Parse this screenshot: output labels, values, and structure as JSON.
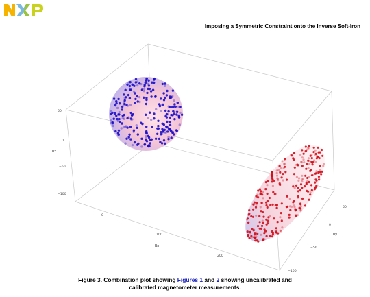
{
  "header": {
    "logo_text": "NXP",
    "title": "Imposing a Symmetric Constraint onto the Inverse Soft-Iron"
  },
  "caption": {
    "part1": "Figure 3. Combination plot showing ",
    "link1": "Figures 1",
    "part2": " and ",
    "link2": "2",
    "part3": " showing uncalibrated and",
    "line2": "calibrated magnetometer measurements."
  },
  "plot": {
    "axes": {
      "bz_label": "Bz",
      "bx_label": "Bx",
      "by_label": "By",
      "bz_ticks": [
        "50",
        "0",
        "−50",
        "−100"
      ],
      "bx_ticks": [
        "0",
        "100",
        "200"
      ],
      "by_ticks": [
        "50",
        "0",
        "−50",
        "−100"
      ]
    },
    "colors": {
      "calibrated_points": "#1c10c8",
      "uncalibrated_points": "#d0101c",
      "box_edges": "#c8c8c8"
    }
  }
}
